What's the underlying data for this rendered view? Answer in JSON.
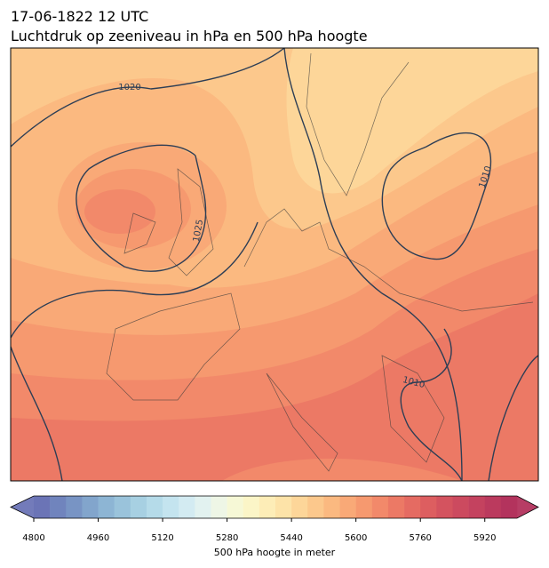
{
  "title": "17-06-1822 12 UTC",
  "subtitle": "Luchtdruk op zeeniveau in hPa en 500 hPa hoogte",
  "map": {
    "contour_labels": [
      1020,
      1010,
      1025,
      1010
    ]
  },
  "colorbar": {
    "label": "500 hPa hoogte in meter",
    "range": [
      4800,
      6000
    ],
    "ticks": [
      4800,
      4960,
      5120,
      5280,
      5440,
      5600,
      5760,
      5920
    ],
    "colors": [
      "#6b74b6",
      "#7084bd",
      "#7894c4",
      "#82a5cc",
      "#8db5d4",
      "#9ac3db",
      "#a7d0e2",
      "#b5dbe9",
      "#c4e4ef",
      "#d3ebf2",
      "#e2f2f0",
      "#eef6e6",
      "#f6f8d6",
      "#fbf5c7",
      "#fdedb7",
      "#fde3a8",
      "#fdd699",
      "#fcc88c",
      "#fbb980",
      "#f9a977",
      "#f6996f",
      "#f2896a",
      "#ec7965",
      "#e56b62",
      "#dd5e60",
      "#d4535f",
      "#cc4a5f",
      "#c4425f",
      "#bb3a5e",
      "#b3335d"
    ]
  }
}
